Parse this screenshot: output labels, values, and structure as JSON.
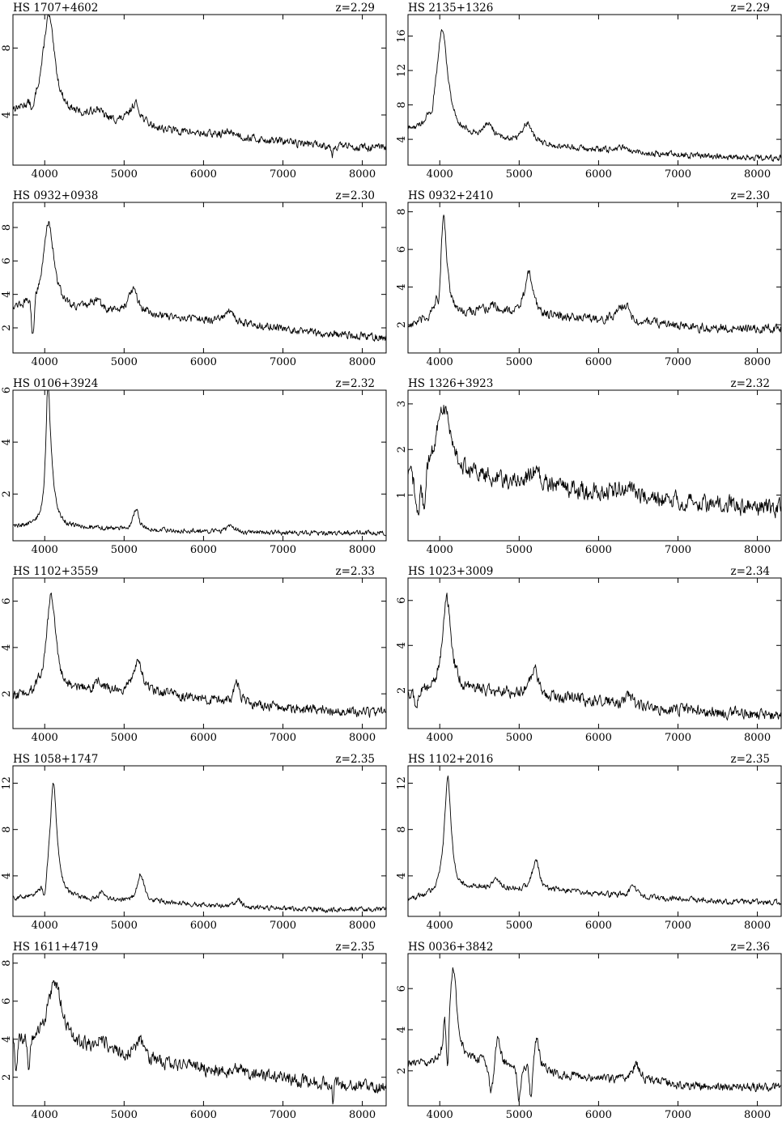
{
  "chart_data": [
    {
      "type": "line",
      "title": "HS 1707+4602",
      "redshift": "z=2.29",
      "xlim": [
        3600,
        8300
      ],
      "ylim": [
        1.0,
        10.0
      ],
      "xticks": [
        4000,
        5000,
        6000,
        7000,
        8000
      ],
      "yticks": [
        4,
        8
      ],
      "features": [
        {
          "x": 4050,
          "h": 5.9,
          "w": 90
        },
        {
          "x": 4660,
          "h": 0.6,
          "w": 70
        },
        {
          "x": 5140,
          "h": 1.3,
          "w": 80
        },
        {
          "x": 6350,
          "h": 0.3,
          "w": 100
        }
      ],
      "base": [
        [
          3600,
          4.2
        ],
        [
          4500,
          3.8
        ],
        [
          5500,
          3.1
        ],
        [
          6500,
          2.6
        ],
        [
          7500,
          2.2
        ],
        [
          8300,
          2.0
        ]
      ],
      "noise": 0.2,
      "dips": [
        {
          "x": 3850,
          "d": 0.8,
          "w": 30
        },
        {
          "x": 7620,
          "d": 0.6,
          "w": 15
        }
      ]
    },
    {
      "type": "line",
      "title": "HS 2135+1326",
      "redshift": "z=2.29",
      "xlim": [
        3600,
        8300
      ],
      "ylim": [
        1.0,
        18.5
      ],
      "xticks": [
        4000,
        5000,
        6000,
        7000,
        8000
      ],
      "yticks": [
        4,
        8,
        12,
        16
      ],
      "features": [
        {
          "x": 4030,
          "h": 12.2,
          "w": 85
        },
        {
          "x": 4620,
          "h": 1.5,
          "w": 60
        },
        {
          "x": 5100,
          "h": 2.3,
          "w": 70
        },
        {
          "x": 6300,
          "h": 0.5,
          "w": 90
        }
      ],
      "base": [
        [
          3600,
          4.8
        ],
        [
          4500,
          4.2
        ],
        [
          5500,
          3.1
        ],
        [
          6500,
          2.4
        ],
        [
          7500,
          2.0
        ],
        [
          8300,
          1.8
        ]
      ],
      "noise": 0.3,
      "dips": [
        {
          "x": 3900,
          "d": 1.0,
          "w": 25
        }
      ]
    },
    {
      "type": "line",
      "title": "HS 0932+0938",
      "redshift": "z=2.30",
      "xlim": [
        3600,
        8300
      ],
      "ylim": [
        0.5,
        9.5
      ],
      "xticks": [
        4000,
        5000,
        6000,
        7000,
        8000
      ],
      "yticks": [
        2,
        4,
        6,
        8
      ],
      "features": [
        {
          "x": 4050,
          "h": 5.2,
          "w": 80
        },
        {
          "x": 4640,
          "h": 0.6,
          "w": 70
        },
        {
          "x": 5110,
          "h": 1.4,
          "w": 75
        },
        {
          "x": 6320,
          "h": 0.6,
          "w": 90
        }
      ],
      "base": [
        [
          3600,
          3.2
        ],
        [
          4500,
          3.0
        ],
        [
          5500,
          2.7
        ],
        [
          6500,
          2.2
        ],
        [
          7500,
          1.7
        ],
        [
          8300,
          1.4
        ]
      ],
      "noise": 0.2,
      "dips": [
        {
          "x": 3850,
          "d": 2.2,
          "w": 25
        }
      ]
    },
    {
      "type": "line",
      "title": "HS 0932+2410",
      "redshift": "z=2.30",
      "xlim": [
        3600,
        8300
      ],
      "ylim": [
        0.5,
        8.5
      ],
      "xticks": [
        4000,
        5000,
        6000,
        7000,
        8000
      ],
      "yticks": [
        2,
        4,
        6,
        8
      ],
      "features": [
        {
          "x": 4050,
          "h": 5.3,
          "w": 50
        },
        {
          "x": 4680,
          "h": 0.4,
          "w": 60
        },
        {
          "x": 5120,
          "h": 2.2,
          "w": 60
        },
        {
          "x": 6320,
          "h": 0.9,
          "w": 90
        }
      ],
      "base": [
        [
          3600,
          1.9
        ],
        [
          4500,
          2.7
        ],
        [
          5500,
          2.4
        ],
        [
          6500,
          2.1
        ],
        [
          7500,
          1.8
        ],
        [
          8300,
          1.8
        ]
      ],
      "noise": 0.2,
      "dips": [
        {
          "x": 3990,
          "d": 1.2,
          "w": 20
        }
      ]
    },
    {
      "type": "line",
      "title": "HS 0106+3924",
      "redshift": "z=2.32",
      "xlim": [
        3600,
        8300
      ],
      "ylim": [
        0.2,
        6.0
      ],
      "xticks": [
        4000,
        5000,
        6000,
        7000,
        8000
      ],
      "yticks": [
        2,
        4,
        6
      ],
      "features": [
        {
          "x": 4040,
          "h": 4.6,
          "w": 30
        },
        {
          "x": 4080,
          "h": 1.5,
          "w": 60
        },
        {
          "x": 5150,
          "h": 0.8,
          "w": 40
        },
        {
          "x": 6350,
          "h": 0.3,
          "w": 50
        }
      ],
      "base": [
        [
          3600,
          0.75
        ],
        [
          4500,
          0.7
        ],
        [
          5500,
          0.6
        ],
        [
          6500,
          0.52
        ],
        [
          7500,
          0.5
        ],
        [
          8300,
          0.5
        ]
      ],
      "noise": 0.08,
      "dips": []
    },
    {
      "type": "line",
      "title": "HS 1326+3923",
      "redshift": "z=2.32",
      "xlim": [
        3600,
        8300
      ],
      "ylim": [
        0.0,
        3.3
      ],
      "xticks": [
        4000,
        5000,
        6000,
        7000,
        8000
      ],
      "yticks": [
        1,
        2,
        3
      ],
      "features": [
        {
          "x": 4050,
          "h": 1.6,
          "w": 120
        },
        {
          "x": 5200,
          "h": 0.3,
          "w": 80
        },
        {
          "x": 6350,
          "h": 0.2,
          "w": 90
        }
      ],
      "base": [
        [
          3600,
          1.3
        ],
        [
          4500,
          1.35
        ],
        [
          5500,
          1.15
        ],
        [
          6500,
          0.95
        ],
        [
          7500,
          0.8
        ],
        [
          8300,
          0.7
        ]
      ],
      "noise": 0.16,
      "dips": [
        {
          "x": 3720,
          "d": 0.9,
          "w": 40
        },
        {
          "x": 3800,
          "d": 0.8,
          "w": 30
        }
      ]
    },
    {
      "type": "line",
      "title": "HS 1102+3559",
      "redshift": "z=2.33",
      "xlim": [
        3600,
        8300
      ],
      "ylim": [
        0.5,
        7.0
      ],
      "xticks": [
        4000,
        5000,
        6000,
        7000,
        8000
      ],
      "yticks": [
        2,
        4,
        6
      ],
      "features": [
        {
          "x": 4080,
          "h": 4.3,
          "w": 70
        },
        {
          "x": 4680,
          "h": 0.4,
          "w": 60
        },
        {
          "x": 5170,
          "h": 1.3,
          "w": 70
        },
        {
          "x": 6420,
          "h": 0.9,
          "w": 50
        }
      ],
      "base": [
        [
          3600,
          1.8
        ],
        [
          4500,
          2.1
        ],
        [
          5500,
          2.0
        ],
        [
          6500,
          1.5
        ],
        [
          7500,
          1.3
        ],
        [
          8300,
          1.2
        ]
      ],
      "noise": 0.18,
      "dips": []
    },
    {
      "type": "line",
      "title": "HS 1023+3009",
      "redshift": "z=2.34",
      "xlim": [
        3600,
        8300
      ],
      "ylim": [
        0.3,
        7.0
      ],
      "xticks": [
        4000,
        5000,
        6000,
        7000,
        8000
      ],
      "yticks": [
        2,
        4,
        6
      ],
      "features": [
        {
          "x": 4090,
          "h": 4.2,
          "w": 65
        },
        {
          "x": 5190,
          "h": 1.3,
          "w": 50
        },
        {
          "x": 6380,
          "h": 0.5,
          "w": 50
        }
      ],
      "base": [
        [
          3600,
          1.8
        ],
        [
          4500,
          2.0
        ],
        [
          5500,
          1.7
        ],
        [
          6500,
          1.3
        ],
        [
          7500,
          1.0
        ],
        [
          8300,
          0.9
        ]
      ],
      "noise": 0.22,
      "dips": [
        {
          "x": 3700,
          "d": 0.8,
          "w": 25
        }
      ]
    },
    {
      "type": "line",
      "title": "HS 1058+1747",
      "redshift": "z=2.35",
      "xlim": [
        3600,
        8300
      ],
      "ylim": [
        0.5,
        13.5
      ],
      "xticks": [
        4000,
        5000,
        6000,
        7000,
        8000
      ],
      "yticks": [
        4,
        8,
        12
      ],
      "features": [
        {
          "x": 4110,
          "h": 10.0,
          "w": 55
        },
        {
          "x": 4730,
          "h": 0.7,
          "w": 45
        },
        {
          "x": 5210,
          "h": 2.4,
          "w": 50
        },
        {
          "x": 6440,
          "h": 0.6,
          "w": 40
        }
      ],
      "base": [
        [
          3600,
          2.0
        ],
        [
          4500,
          1.9
        ],
        [
          5500,
          1.7
        ],
        [
          6500,
          1.3
        ],
        [
          7500,
          1.1
        ],
        [
          8300,
          1.1
        ]
      ],
      "noise": 0.18,
      "dips": [
        {
          "x": 4000,
          "d": 1.5,
          "w": 30
        }
      ]
    },
    {
      "type": "line",
      "title": "HS 1102+2016",
      "redshift": "z=2.35",
      "xlim": [
        3600,
        8300
      ],
      "ylim": [
        0.5,
        13.5
      ],
      "xticks": [
        4000,
        5000,
        6000,
        7000,
        8000
      ],
      "yticks": [
        4,
        8,
        12
      ],
      "features": [
        {
          "x": 4100,
          "h": 10.2,
          "w": 50
        },
        {
          "x": 4720,
          "h": 0.8,
          "w": 50
        },
        {
          "x": 5210,
          "h": 2.7,
          "w": 50
        },
        {
          "x": 6440,
          "h": 1.0,
          "w": 50
        }
      ],
      "base": [
        [
          3600,
          1.9
        ],
        [
          4500,
          2.9
        ],
        [
          5500,
          2.7
        ],
        [
          6500,
          2.2
        ],
        [
          7500,
          1.8
        ],
        [
          8300,
          1.7
        ]
      ],
      "noise": 0.2,
      "dips": []
    },
    {
      "type": "line",
      "title": "HS 1611+4719",
      "redshift": "z=2.35",
      "xlim": [
        3600,
        8300
      ],
      "ylim": [
        0.5,
        8.5
      ],
      "xticks": [
        4000,
        5000,
        6000,
        7000,
        8000
      ],
      "yticks": [
        2,
        4,
        6,
        8
      ],
      "features": [
        {
          "x": 4130,
          "h": 3.4,
          "w": 110
        },
        {
          "x": 4720,
          "h": 0.6,
          "w": 100
        },
        {
          "x": 5200,
          "h": 1.0,
          "w": 70
        },
        {
          "x": 6420,
          "h": 0.3,
          "w": 60
        }
      ],
      "base": [
        [
          3600,
          3.8
        ],
        [
          4500,
          3.4
        ],
        [
          5500,
          2.7
        ],
        [
          6500,
          2.2
        ],
        [
          7500,
          1.7
        ],
        [
          8300,
          1.4
        ]
      ],
      "noise": 0.3,
      "dips": [
        {
          "x": 3640,
          "d": 1.8,
          "w": 20
        },
        {
          "x": 3800,
          "d": 1.4,
          "w": 20
        },
        {
          "x": 7630,
          "d": 0.7,
          "w": 15
        }
      ]
    },
    {
      "type": "line",
      "title": "HS 0036+3842",
      "redshift": "z=2.36",
      "xlim": [
        3600,
        8300
      ],
      "ylim": [
        0.3,
        7.7
      ],
      "xticks": [
        4000,
        5000,
        6000,
        7000,
        8000
      ],
      "yticks": [
        2,
        4,
        6
      ],
      "features": [
        {
          "x": 4170,
          "h": 4.6,
          "w": 55
        },
        {
          "x": 4060,
          "h": 1.4,
          "w": 15
        },
        {
          "x": 4730,
          "h": 1.2,
          "w": 40
        },
        {
          "x": 5220,
          "h": 1.5,
          "w": 45
        },
        {
          "x": 6470,
          "h": 0.8,
          "w": 60
        }
      ],
      "base": [
        [
          3600,
          2.3
        ],
        [
          4500,
          2.4
        ],
        [
          5500,
          1.8
        ],
        [
          6500,
          1.5
        ],
        [
          7500,
          1.2
        ],
        [
          8300,
          1.2
        ]
      ],
      "noise": 0.18,
      "dips": [
        {
          "x": 4100,
          "d": 2.0,
          "w": 20
        },
        {
          "x": 4650,
          "d": 1.6,
          "w": 40
        },
        {
          "x": 5000,
          "d": 1.6,
          "w": 30
        },
        {
          "x": 5150,
          "d": 1.8,
          "w": 25
        }
      ]
    }
  ]
}
